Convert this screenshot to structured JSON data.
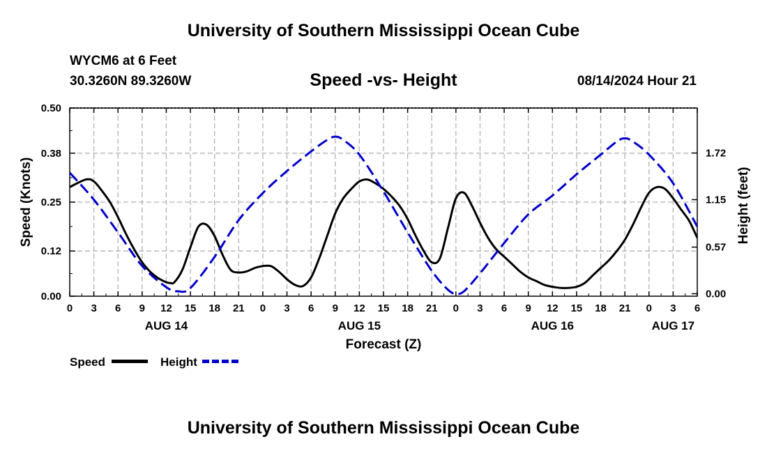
{
  "header": {
    "title": "University of Southern Mississippi Ocean Cube",
    "station": "WYCM6 at 6 Feet",
    "coords": "30.3260N  89.3260W",
    "subtitle": "Speed -vs- Height",
    "timestamp": "08/14/2024 Hour 21"
  },
  "footer": {
    "title": "University of Southern Mississippi Ocean Cube"
  },
  "legend": {
    "speed_label": "Speed",
    "height_label": "Height"
  },
  "colors": {
    "speed": "#000000",
    "height": "#0000cc",
    "grid": "#b0b0b0"
  },
  "chart_data": {
    "type": "line",
    "title": "Speed -vs- Height",
    "xlabel": "Forecast (Z)",
    "ylabel": "Speed (Knots)",
    "y2label": "Height (feet)",
    "xlim": [
      0,
      78
    ],
    "ylim": [
      0,
      0.5
    ],
    "y2lim": [
      -0.03,
      2.27
    ],
    "x_ticks": [
      0,
      3,
      6,
      9,
      12,
      15,
      18,
      21,
      24,
      27,
      30,
      33,
      36,
      39,
      42,
      45,
      48,
      51,
      54,
      57,
      60,
      63,
      66,
      69,
      72,
      75,
      78
    ],
    "x_tick_labels": [
      "0",
      "3",
      "6",
      "9",
      "12",
      "15",
      "18",
      "21",
      "0",
      "3",
      "6",
      "9",
      "12",
      "15",
      "18",
      "21",
      "0",
      "3",
      "6",
      "9",
      "12",
      "15",
      "18",
      "21",
      "0",
      "3",
      "6"
    ],
    "day_labels": [
      {
        "x": 12,
        "label": "AUG 14"
      },
      {
        "x": 36,
        "label": "AUG 15"
      },
      {
        "x": 60,
        "label": "AUG 16"
      },
      {
        "x": 75,
        "label": "AUG 17"
      }
    ],
    "y_ticks": [
      0,
      0.12,
      0.25,
      0.38,
      0.5
    ],
    "y_tick_labels": [
      "0.00",
      "0.12",
      "0.25",
      "0.38",
      "0.50"
    ],
    "y2_ticks": [
      0,
      0.57,
      1.15,
      1.72
    ],
    "y2_tick_labels": [
      "0.00",
      "0.57",
      "1.15",
      "1.72"
    ],
    "series": [
      {
        "name": "Speed",
        "axis": "left",
        "x": [
          0,
          2,
          3,
          4,
          5,
          6,
          7,
          8,
          9,
          10,
          11,
          12,
          12.5,
          13,
          14,
          15,
          16,
          17,
          18,
          19,
          20,
          21,
          22,
          23,
          24,
          25,
          26,
          27,
          28,
          29,
          30,
          31,
          32,
          33,
          34,
          35,
          36,
          37,
          38,
          39,
          40,
          41,
          42,
          43,
          44,
          45,
          46,
          47,
          48,
          49,
          50,
          51,
          52,
          53,
          54,
          55,
          56,
          57,
          58,
          59,
          60,
          61,
          62,
          63,
          64,
          65,
          66,
          67,
          68,
          69,
          70,
          71,
          72,
          73,
          74,
          75,
          76,
          77,
          78
        ],
        "values": [
          0.29,
          0.31,
          0.305,
          0.28,
          0.25,
          0.21,
          0.165,
          0.125,
          0.09,
          0.065,
          0.048,
          0.037,
          0.035,
          0.037,
          0.07,
          0.13,
          0.185,
          0.19,
          0.16,
          0.11,
          0.07,
          0.063,
          0.066,
          0.075,
          0.08,
          0.08,
          0.065,
          0.045,
          0.03,
          0.027,
          0.05,
          0.1,
          0.16,
          0.22,
          0.26,
          0.285,
          0.305,
          0.31,
          0.3,
          0.285,
          0.265,
          0.24,
          0.205,
          0.16,
          0.12,
          0.09,
          0.1,
          0.18,
          0.26,
          0.275,
          0.24,
          0.195,
          0.155,
          0.125,
          0.105,
          0.085,
          0.065,
          0.05,
          0.04,
          0.03,
          0.025,
          0.022,
          0.022,
          0.025,
          0.035,
          0.055,
          0.075,
          0.095,
          0.12,
          0.15,
          0.19,
          0.235,
          0.275,
          0.29,
          0.285,
          0.26,
          0.23,
          0.2,
          0.155
        ]
      },
      {
        "name": "Height",
        "axis": "right",
        "x": [
          0,
          3,
          6,
          9,
          12,
          13.5,
          15,
          18,
          21,
          24,
          27,
          30,
          32,
          33,
          34,
          36,
          39,
          42,
          45,
          47,
          48,
          49,
          51,
          54,
          57,
          60,
          63,
          66,
          68,
          69,
          70,
          72,
          75,
          78
        ],
        "values": [
          1.48,
          1.15,
          0.75,
          0.34,
          0.08,
          0.03,
          0.07,
          0.45,
          0.9,
          1.23,
          1.5,
          1.74,
          1.88,
          1.92,
          1.88,
          1.7,
          1.25,
          0.75,
          0.28,
          0.05,
          0.0,
          0.03,
          0.25,
          0.62,
          0.97,
          1.2,
          1.46,
          1.7,
          1.86,
          1.9,
          1.86,
          1.7,
          1.35,
          0.82
        ]
      }
    ]
  }
}
